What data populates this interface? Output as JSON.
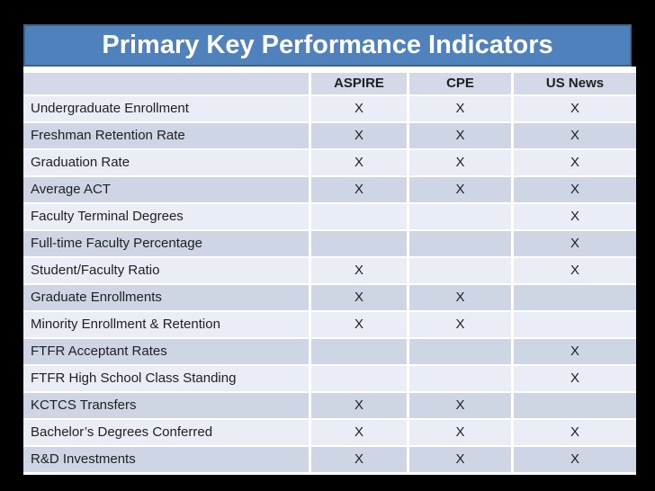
{
  "title": "Primary Key Performance Indicators",
  "table": {
    "columns": [
      "ASPIRE",
      "CPE",
      "US News"
    ],
    "mark_glyph": "X",
    "rows": [
      {
        "label": "Undergraduate Enrollment",
        "marks": [
          "X",
          "X",
          "X"
        ]
      },
      {
        "label": "Freshman Retention Rate",
        "marks": [
          "X",
          "X",
          "X"
        ]
      },
      {
        "label": "Graduation Rate",
        "marks": [
          "X",
          "X",
          "X"
        ]
      },
      {
        "label": "Average ACT",
        "marks": [
          "X",
          "X",
          "X"
        ]
      },
      {
        "label": "Faculty Terminal Degrees",
        "marks": [
          "",
          "",
          "X"
        ]
      },
      {
        "label": "Full-time Faculty Percentage",
        "marks": [
          "",
          "",
          "X"
        ]
      },
      {
        "label": "Student/Faculty Ratio",
        "marks": [
          "X",
          "",
          "X"
        ]
      },
      {
        "label": "Graduate Enrollments",
        "marks": [
          "X",
          "X",
          ""
        ]
      },
      {
        "label": "Minority Enrollment & Retention",
        "marks": [
          "X",
          "X",
          ""
        ]
      },
      {
        "label": "FTFR Acceptant Rates",
        "marks": [
          "",
          "",
          "X"
        ]
      },
      {
        "label": "FTFR High School Class Standing",
        "marks": [
          "",
          "",
          "X"
        ]
      },
      {
        "label": "KCTCS Transfers",
        "marks": [
          "X",
          "X",
          ""
        ]
      },
      {
        "label": "Bachelor’s Degrees Conferred",
        "marks": [
          "X",
          "X",
          "X"
        ]
      },
      {
        "label": "R&D Investments",
        "marks": [
          "X",
          "X",
          "X"
        ]
      }
    ]
  },
  "colors": {
    "background": "#000000",
    "banner_fill": "#4F81BD",
    "banner_border": "#3A6394",
    "header_row": "#D4D9E8",
    "row_light": "#EAEDF5",
    "row_dark": "#CED5E5",
    "grid_line": "#FFFFFF",
    "text": "#1F1F1F",
    "title_text": "#FFFFFF"
  }
}
